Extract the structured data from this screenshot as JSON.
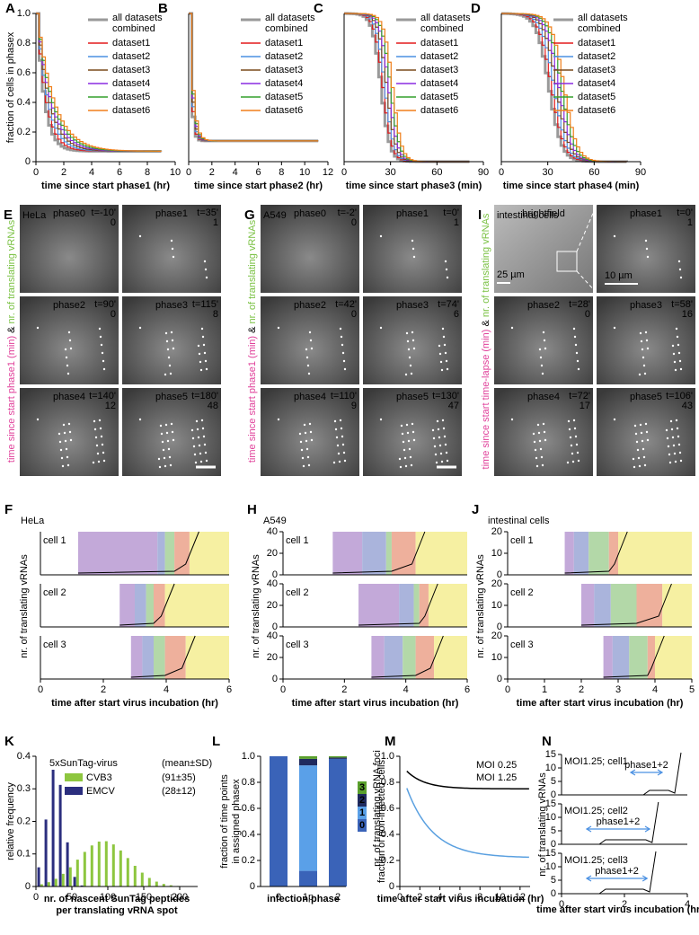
{
  "curves": {
    "ylabel": "fraction of cells in phasex",
    "yticks": [
      "0",
      "0.2",
      "0.4",
      "0.6",
      "0.8",
      "1.0"
    ],
    "legend": [
      "all datasets",
      "combined",
      "dataset1",
      "dataset2",
      "dataset3",
      "dataset4",
      "dataset5",
      "dataset6"
    ],
    "panels": [
      {
        "letter": "A",
        "xlabel": "time since start phase1 (hr)",
        "xticks": [
          "0",
          "2",
          "4",
          "6",
          "8",
          "10"
        ]
      },
      {
        "letter": "B",
        "xlabel": "time since start phase2 (hr)",
        "xticks": [
          "0",
          "2",
          "4",
          "6",
          "8",
          "10",
          "12"
        ]
      },
      {
        "letter": "C",
        "xlabel": "time since start phase3 (min)",
        "xticks": [
          "0",
          "30",
          "60",
          "90"
        ]
      },
      {
        "letter": "D",
        "xlabel": "time since start phase4 (min)",
        "xticks": [
          "0",
          "30",
          "60",
          "90"
        ]
      }
    ]
  },
  "micro": [
    {
      "letter": "E",
      "side": [
        "time since start phase1 (min)",
        " & ",
        "nr. of translating vRNAs"
      ],
      "cell": "HeLa",
      "tiles": [
        {
          "phase": "phase0",
          "t": "t=-10'",
          "n": "0"
        },
        {
          "phase": "phase1",
          "t": "t=35'",
          "n": "1"
        },
        {
          "phase": "phase2",
          "t": "t=90'",
          "n": "0"
        },
        {
          "phase": "phase3",
          "t": "t=115'",
          "n": "8"
        },
        {
          "phase": "phase4",
          "t": "t=140'",
          "n": "12"
        },
        {
          "phase": "phase5",
          "t": "t=180'",
          "n": "48"
        }
      ]
    },
    {
      "letter": "G",
      "side": [
        "time since start phase1 (min)",
        " & ",
        "nr. of translating vRNAs"
      ],
      "cell": "A549",
      "tiles": [
        {
          "phase": "phase0",
          "t": "t=-2'",
          "n": "0"
        },
        {
          "phase": "phase1",
          "t": "t=0'",
          "n": "1"
        },
        {
          "phase": "phase2",
          "t": "t=42'",
          "n": "0"
        },
        {
          "phase": "phase3",
          "t": "t=74'",
          "n": "6"
        },
        {
          "phase": "phase4",
          "t": "t=110'",
          "n": "9"
        },
        {
          "phase": "phase5",
          "t": "t=130'",
          "n": "47"
        }
      ]
    },
    {
      "letter": "I",
      "side": [
        "time since start time-lapse (min)",
        " & ",
        "nr. of translating vRNAs"
      ],
      "cell": "intestinal cells",
      "scale": [
        "25 µm",
        "10 µm"
      ],
      "tiles": [
        {
          "phase": "brightfield"
        },
        {
          "phase": "phase1",
          "t": "t=0'",
          "n": "1"
        },
        {
          "phase": "phase2",
          "t": "t=28'",
          "n": "0"
        },
        {
          "phase": "phase3",
          "t": "t=58'",
          "n": "16"
        },
        {
          "phase": "phase4",
          "t": "t=72'",
          "n": "17"
        },
        {
          "phase": "phase5",
          "t": "t=106'",
          "n": "43"
        }
      ]
    }
  ],
  "traces": {
    "xlabel": "time after start virus incubation (hr)",
    "ylabel": "nr. of translating vRNAs",
    "panels": [
      {
        "letter": "F",
        "cell": "HeLa",
        "cells": [
          "cell 1",
          "cell 2",
          "cell 3"
        ],
        "xticks": [
          "0",
          "2",
          "4",
          "6"
        ]
      },
      {
        "letter": "H",
        "cell": "A549",
        "cells": [
          "cell 1",
          "cell 2",
          "cell 3"
        ],
        "yticks": [
          "0",
          "20",
          "40"
        ],
        "xticks": [
          "0",
          "2",
          "4",
          "6"
        ]
      },
      {
        "letter": "J",
        "cell": "intestinal cells",
        "cells": [
          "cell 1",
          "cell 2",
          "cell 3"
        ],
        "yticks": [
          "0",
          "10",
          "20"
        ],
        "xticks": [
          "0",
          "1",
          "2",
          "3",
          "4",
          "5"
        ]
      }
    ]
  },
  "K": {
    "letter": "K",
    "title": "5xSunTag-virus",
    "note": "(mean±SD)",
    "series": [
      {
        "name": "CVB3",
        "stat": "(91±35)"
      },
      {
        "name": "EMCV",
        "stat": "(28±12)"
      }
    ],
    "yticks": [
      "0",
      "0.1",
      "0.2",
      "0.3",
      "0.4"
    ],
    "xticks": [
      "0",
      "50",
      "100",
      "150",
      "200"
    ],
    "ylabel": "relative frequency",
    "xlabel": [
      "nr. of nascent SunTag peptides",
      "per translating vRNA spot"
    ]
  },
  "L": {
    "letter": "L",
    "ylabel": [
      "fraction of time points",
      "in assigned phasex"
    ],
    "xlabel": "infection phase",
    "xticks": [
      "0",
      "1p",
      "2"
    ],
    "yticks": [
      "0",
      "0.2",
      "0.4",
      "0.6",
      "0.8",
      "1.0"
    ],
    "legend_title": "nr. of translating vRNA foci",
    "legend": [
      "3",
      "2",
      "1",
      "0"
    ]
  },
  "M": {
    "letter": "M",
    "series": [
      "MOI 0.25",
      "MOI 1.25"
    ],
    "ylabel": "fraction of non-infected cells",
    "xlabel": "time after start virus incubation (hr)",
    "xticks": [
      "0",
      "2",
      "4",
      "6",
      "8",
      "10",
      "12"
    ],
    "yticks": [
      "0",
      "0.2",
      "0.4",
      "0.6",
      "0.8",
      "1.0"
    ]
  },
  "N": {
    "letter": "N",
    "cells": [
      "MOI1.25; cell1",
      "MOI1.25; cell2",
      "MOI1.25; cell3"
    ],
    "arrow": "phase1+2",
    "yticks": [
      "0",
      "5",
      "10",
      "15"
    ],
    "xticks": [
      "0",
      "2",
      "4"
    ],
    "ylabel": "nr. of translating vRNAs",
    "xlabel": "time after start virus incubation (hr)"
  }
}
